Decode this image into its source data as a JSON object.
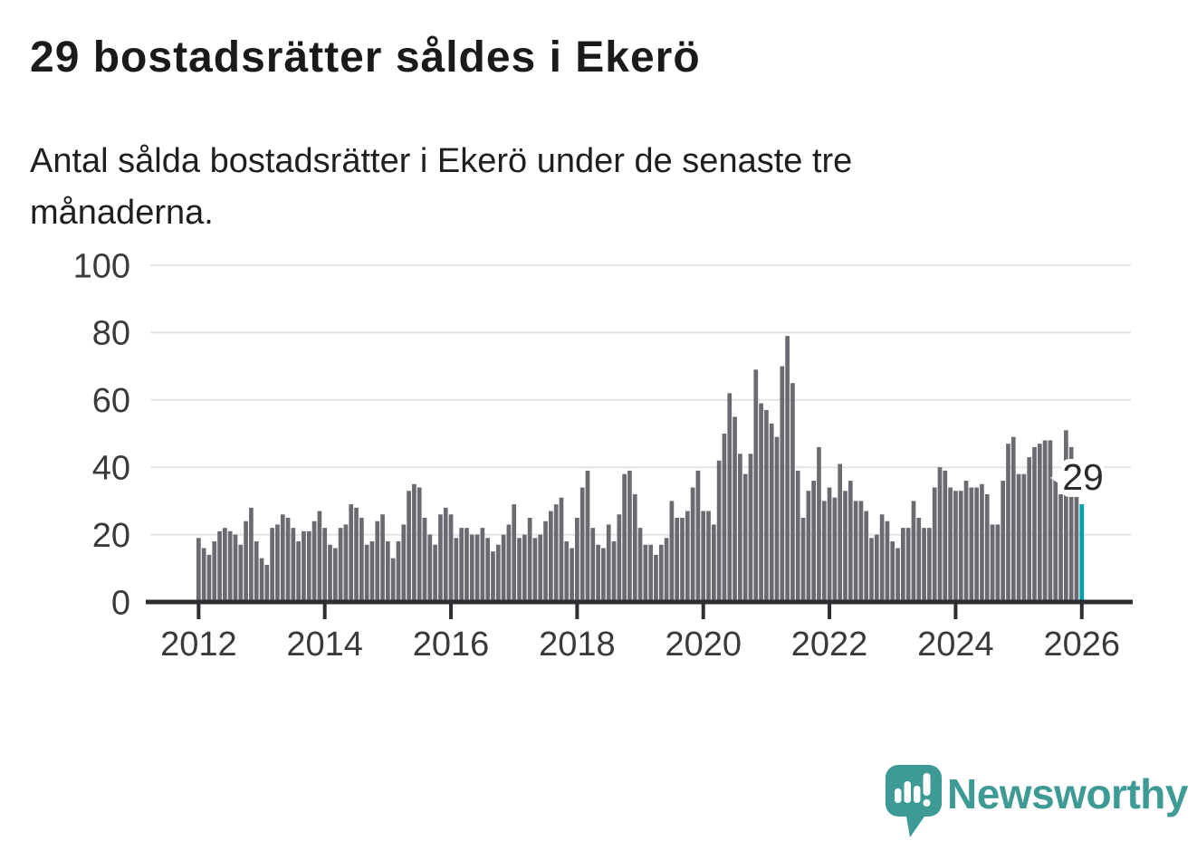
{
  "header": {
    "title": "29 bostadsrätter såldes i Ekerö",
    "subtitle_lines": [
      "Antal sålda bostadsrätter i Ekerö under de senaste tre",
      "månaderna."
    ]
  },
  "chart_data": {
    "type": "bar",
    "title": "29 bostadsrätter såldes i Ekerö",
    "subtitle": "Antal sålda bostadsrätter i Ekerö under de senaste tre månaderna.",
    "x_start": "2012-01",
    "x_frequency": "monthly",
    "xlabel": "",
    "ylabel": "",
    "ylim": [
      0,
      100
    ],
    "grid": true,
    "legend": "none",
    "yticks": [
      0,
      20,
      40,
      60,
      80,
      100
    ],
    "xticks": [
      "2012",
      "2014",
      "2016",
      "2018",
      "2020",
      "2022",
      "2024",
      "2026"
    ],
    "xtick_interval_months": 24,
    "values": [
      19,
      16,
      14,
      18,
      21,
      22,
      21,
      20,
      17,
      24,
      28,
      18,
      13,
      11,
      22,
      23,
      26,
      25,
      22,
      18,
      21,
      21,
      24,
      27,
      22,
      17,
      16,
      22,
      23,
      29,
      28,
      25,
      17,
      18,
      24,
      26,
      18,
      13,
      18,
      23,
      33,
      35,
      34,
      25,
      20,
      17,
      26,
      28,
      26,
      19,
      22,
      22,
      20,
      20,
      22,
      19,
      15,
      17,
      20,
      23,
      29,
      19,
      20,
      25,
      19,
      20,
      24,
      27,
      29,
      31,
      18,
      16,
      25,
      34,
      39,
      22,
      17,
      16,
      23,
      18,
      26,
      38,
      39,
      32,
      22,
      17,
      17,
      14,
      17,
      19,
      30,
      25,
      25,
      27,
      34,
      39,
      27,
      27,
      23,
      42,
      50,
      62,
      55,
      44,
      38,
      44,
      69,
      59,
      57,
      53,
      49,
      70,
      79,
      65,
      39,
      25,
      33,
      36,
      46,
      30,
      34,
      31,
      41,
      33,
      36,
      30,
      30,
      27,
      19,
      20,
      26,
      24,
      18,
      16,
      22,
      22,
      30,
      25,
      22,
      22,
      34,
      40,
      39,
      34,
      33,
      33,
      36,
      34,
      34,
      35,
      32,
      23,
      23,
      36,
      47,
      49,
      38,
      38,
      43,
      46,
      47,
      48,
      48,
      37,
      32,
      51,
      46,
      32,
      29
    ],
    "highlight": {
      "index": 168,
      "value": 29,
      "label": "29"
    },
    "colors": {
      "bar": "#6a6a70",
      "highlight": "#00a0a8",
      "axis": "#2e2e32",
      "gridline": "#e4e4e6",
      "tick_label": "#3a3a3e",
      "annotation_bg": "#ffffff"
    }
  },
  "annotation": {
    "label": "29"
  },
  "footer": {
    "brand": "Newsworthy",
    "brand_color": "#3e9a94",
    "icons": [
      "speech-bubble-bar-chart-icon"
    ]
  }
}
